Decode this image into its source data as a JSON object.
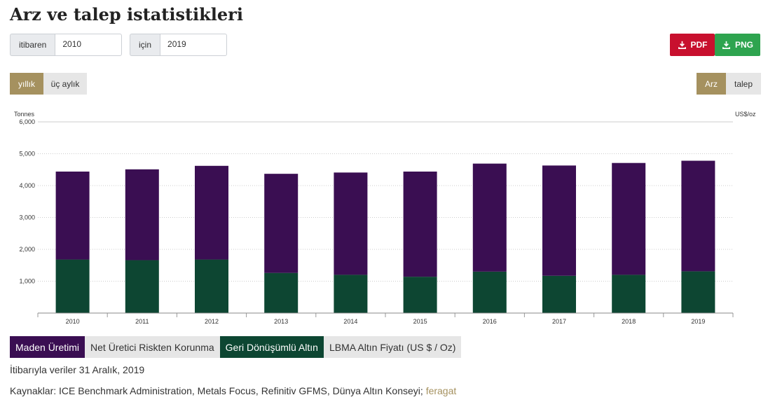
{
  "header": {
    "title": "Arz ve talep istatistikleri"
  },
  "range": {
    "from_label": "itibaren",
    "from_value": "2010",
    "to_label": "için",
    "to_value": "2019"
  },
  "download": {
    "pdf_label": "PDF",
    "png_label": "PNG",
    "pdf_color": "#c8102e",
    "png_color": "#2ea44f"
  },
  "period_toggle": {
    "yearly": "yıllık",
    "quarterly": "üç aylık"
  },
  "view_toggle": {
    "supply": "Arz",
    "demand": "talep"
  },
  "legend": {
    "items": [
      {
        "label": "Maden Üretimi",
        "color": "#3a0e52",
        "active": true
      },
      {
        "label": "Net Üretici Riskten Korunma",
        "color": "#e6e6e6",
        "active": false
      },
      {
        "label": "Geri Dönüşümlü Altın",
        "color": "#0d4632",
        "active": true
      },
      {
        "label": "LBMA Altın Fiyatı (US $ / Oz)",
        "color": "#e6e6e6",
        "active": false
      }
    ]
  },
  "footer": {
    "date_note": "İtibarıyla veriler 31 Aralık, 2019",
    "sources": "Kaynaklar: ICE Benchmark Administration, Metals Focus, Refinitiv GFMS, Dünya Altın Konseyi;",
    "disclaimer": "feragat"
  },
  "chart_data": {
    "type": "bar",
    "stacked": true,
    "categories": [
      "2010",
      "2011",
      "2012",
      "2013",
      "2014",
      "2015",
      "2016",
      "2017",
      "2018",
      "2019"
    ],
    "series": [
      {
        "name": "Geri Dönüşümlü Altın",
        "color": "#0d4632",
        "values": [
          1680,
          1660,
          1680,
          1260,
          1200,
          1140,
          1300,
          1170,
          1200,
          1310
        ]
      },
      {
        "name": "Maden Üretimi",
        "color": "#3a0e52",
        "values": [
          2760,
          2850,
          2940,
          3110,
          3210,
          3300,
          3390,
          3460,
          3510,
          3470
        ]
      }
    ],
    "ylabel": "Tonnes",
    "y2label": "US$/oz",
    "ylim": [
      0,
      6000
    ],
    "yticks": [
      1000,
      2000,
      3000,
      4000,
      5000,
      6000
    ],
    "ytick_labels": [
      "1,000",
      "2,000",
      "3,000",
      "4,000",
      "5,000",
      "6,000"
    ],
    "grid": true
  }
}
